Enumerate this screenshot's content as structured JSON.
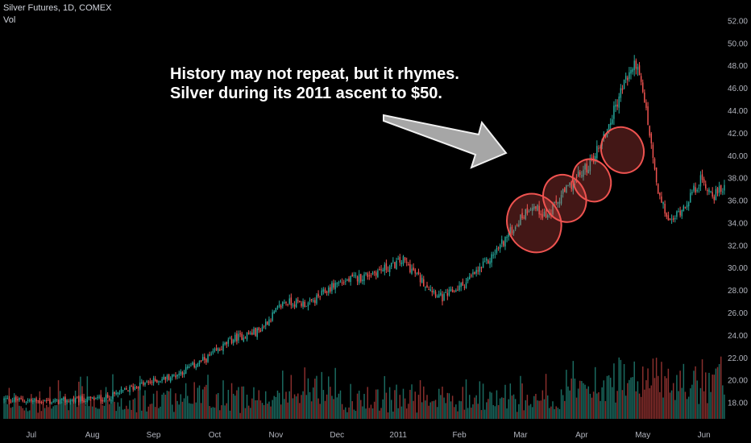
{
  "header": {
    "title": "Silver Futures, 1D, COMEX",
    "volume_label": "Vol"
  },
  "annotation": {
    "line1": "History may not repeat, but it rhymes.",
    "line2": "Silver during its 2011 ascent to $50."
  },
  "colors": {
    "background": "#000000",
    "up": "#26a69a",
    "down": "#ef5350",
    "up_volume": "#1b6b61",
    "down_volume": "#8a2f2d",
    "highlight": "#ef5350",
    "arrow_fill": "#a6a6a6"
  },
  "chart_data": {
    "type": "candlestick",
    "title": "Silver Futures, 1D, COMEX",
    "xlabel": "",
    "ylabel": "",
    "y_ticks": [
      "18.00",
      "20.00",
      "22.00",
      "24.00",
      "26.00",
      "28.00",
      "30.00",
      "32.00",
      "34.00",
      "36.00",
      "38.00",
      "40.00",
      "42.00",
      "44.00",
      "46.00",
      "48.00",
      "50.00",
      "52.00"
    ],
    "ylim": [
      17,
      52.5
    ],
    "x_ticks": [
      "Jul",
      "Aug",
      "Sep",
      "Oct",
      "Nov",
      "Dec",
      "2011",
      "Feb",
      "Mar",
      "Apr",
      "May",
      "Jun"
    ],
    "x_tick_index": [
      16,
      52,
      88,
      124,
      160,
      196,
      232,
      268,
      304,
      340,
      376,
      412
    ],
    "n_bars": 425,
    "approx_close_path": [
      {
        "i": 0,
        "close": 18.3
      },
      {
        "i": 30,
        "close": 18.1
      },
      {
        "i": 60,
        "close": 18.4
      },
      {
        "i": 80,
        "close": 19.6
      },
      {
        "i": 100,
        "close": 20.4
      },
      {
        "i": 120,
        "close": 22.0
      },
      {
        "i": 135,
        "close": 23.7
      },
      {
        "i": 150,
        "close": 24.4
      },
      {
        "i": 165,
        "close": 27.0
      },
      {
        "i": 180,
        "close": 26.8
      },
      {
        "i": 195,
        "close": 28.6
      },
      {
        "i": 210,
        "close": 29.2
      },
      {
        "i": 225,
        "close": 30.0
      },
      {
        "i": 235,
        "close": 30.7
      },
      {
        "i": 245,
        "close": 29.0
      },
      {
        "i": 258,
        "close": 27.3
      },
      {
        "i": 270,
        "close": 28.5
      },
      {
        "i": 285,
        "close": 30.6
      },
      {
        "i": 300,
        "close": 33.6
      },
      {
        "i": 310,
        "close": 35.6
      },
      {
        "i": 320,
        "close": 34.6
      },
      {
        "i": 330,
        "close": 36.8
      },
      {
        "i": 345,
        "close": 39.3
      },
      {
        "i": 355,
        "close": 42.3
      },
      {
        "i": 365,
        "close": 46.5
      },
      {
        "i": 372,
        "close": 48.3
      },
      {
        "i": 378,
        "close": 44.0
      },
      {
        "i": 385,
        "close": 36.5
      },
      {
        "i": 392,
        "close": 34.0
      },
      {
        "i": 400,
        "close": 35.5
      },
      {
        "i": 410,
        "close": 37.8
      },
      {
        "i": 418,
        "close": 36.5
      },
      {
        "i": 424,
        "close": 37.2
      }
    ],
    "highlight_circles": [
      {
        "i": 312,
        "price": 34.0
      },
      {
        "i": 330,
        "price": 36.2
      },
      {
        "i": 346,
        "price": 37.8
      },
      {
        "i": 364,
        "price": 40.5
      }
    ],
    "grid": false,
    "legend": "none"
  }
}
